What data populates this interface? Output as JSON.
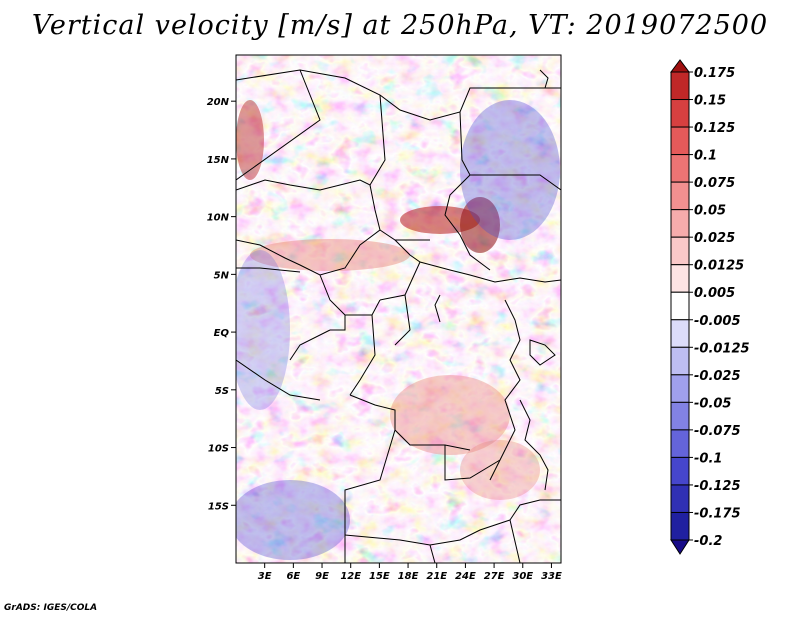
{
  "title": "Vertical velocity [m/s] at 250hPa, VT: 2019072500",
  "credit": "GrADS: IGES/COLA",
  "map": {
    "lat_labels": [
      {
        "label": "20N",
        "lat": 20
      },
      {
        "label": "15N",
        "lat": 15
      },
      {
        "label": "10N",
        "lat": 10
      },
      {
        "label": "5N",
        "lat": 5
      },
      {
        "label": "EQ",
        "lat": 0
      },
      {
        "label": "5S",
        "lat": -5
      },
      {
        "label": "10S",
        "lat": -10
      },
      {
        "label": "15S",
        "lat": -15
      }
    ],
    "lon_labels": [
      {
        "label": "3E",
        "lon": 3
      },
      {
        "label": "6E",
        "lon": 6
      },
      {
        "label": "9E",
        "lon": 9
      },
      {
        "label": "12E",
        "lon": 12
      },
      {
        "label": "15E",
        "lon": 15
      },
      {
        "label": "18E",
        "lon": 18
      },
      {
        "label": "21E",
        "lon": 21
      },
      {
        "label": "24E",
        "lon": 24
      },
      {
        "label": "27E",
        "lon": 27
      },
      {
        "label": "30E",
        "lon": 30
      },
      {
        "label": "33E",
        "lon": 33
      }
    ],
    "lon_range": [
      0,
      34
    ],
    "lat_range": [
      -20,
      24
    ],
    "field_colors": {
      "strong_up": "#b41c1c",
      "up": "#e9827a",
      "neutral": "#ffffff",
      "down": "#7b7be6",
      "strong_down": "#2f2fa8"
    }
  },
  "colorbar": {
    "labels": [
      "0.175",
      "0.15",
      "0.125",
      "0.1",
      "0.075",
      "0.05",
      "0.025",
      "0.0125",
      "0.005",
      "-0.005",
      "-0.0125",
      "-0.025",
      "-0.05",
      "-0.075",
      "-0.1",
      "-0.125",
      "-0.175",
      "-0.2"
    ],
    "colors": [
      "#a01010",
      "#c02828",
      "#d64040",
      "#e55a5a",
      "#ec7474",
      "#f29090",
      "#f6acac",
      "#fac8c8",
      "#fde4e4",
      "#ffffff",
      "#dcdcfa",
      "#bebef2",
      "#a0a0ec",
      "#8282e4",
      "#6464da",
      "#4646cc",
      "#3030b4",
      "#2020a0",
      "#180c88"
    ]
  }
}
